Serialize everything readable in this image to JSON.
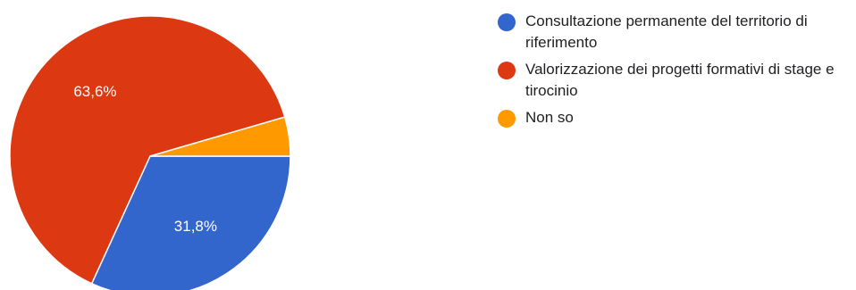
{
  "chart_data": {
    "type": "pie",
    "slices": [
      {
        "label": "Consultazione permanente del territorio di riferimento",
        "value": 31.8,
        "display": "31,8%",
        "color": "#3366cc"
      },
      {
        "label": "Valorizzazione dei progetti formativi di stage e tirocinio",
        "value": 63.6,
        "display": "63,6%",
        "color": "#dc3912"
      },
      {
        "label": "Non so",
        "value": 4.5,
        "display": "",
        "color": "#ff9900"
      }
    ],
    "legend_position": "right"
  }
}
